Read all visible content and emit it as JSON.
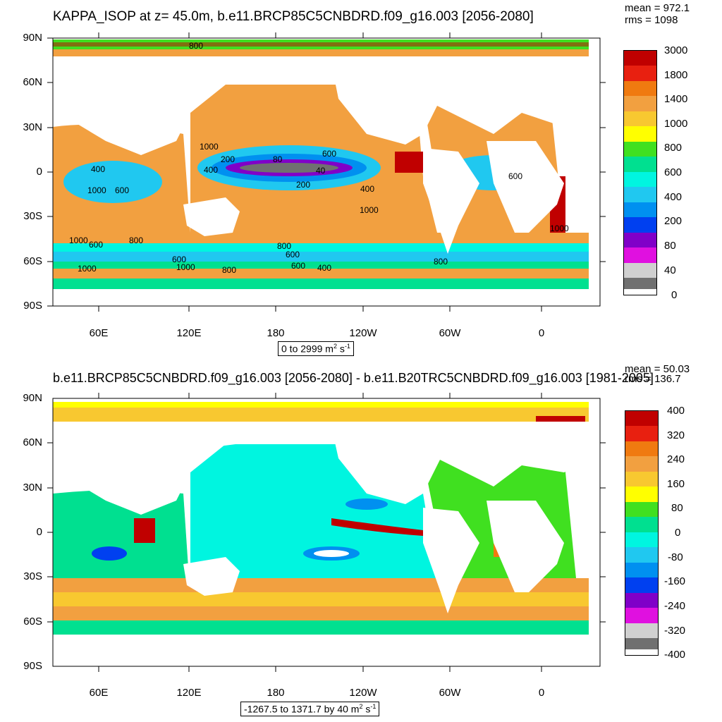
{
  "top": {
    "title": "KAPPA_ISOP at z=  45.0m, b.e11.BRCP85C5CNBDRD.f09_g16.003 [2056-2080]",
    "mean": "mean = 972.1",
    "rms": "rms = 1098",
    "range_label": "0 to 2999",
    "unit": "m",
    "unit_sup1": "2",
    "unit_s": " s",
    "unit_sup2": "-1",
    "colorbar": [
      "3000",
      "1800",
      "1400",
      "1000",
      "800",
      "600",
      "400",
      "200",
      "80",
      "40",
      "0"
    ],
    "colors": [
      "#c00000",
      "#e82010",
      "#f07a10",
      "#f2a040",
      "#f8c830",
      "#ffff00",
      "#40e020",
      "#00e090",
      "#00f5e0",
      "#20c8f0",
      "#0090f0",
      "#0040f0",
      "#8000c8",
      "#e010e0",
      "#d0d0d0",
      "#707070"
    ],
    "contour_labels": [
      "800",
      "1000",
      "200",
      "80",
      "40",
      "600",
      "400",
      "1000",
      "400",
      "600",
      "800",
      "1000",
      "600",
      "800",
      "1000",
      "600",
      "1000",
      "600",
      "800",
      "600",
      "400",
      "800",
      "1000",
      "200",
      "600",
      "400",
      "1000",
      "600",
      "600",
      "800",
      "1000"
    ]
  },
  "bottom": {
    "title": "b.e11.BRCP85C5CNBDRD.f09_g16.003 [2056-2080] - b.e11.B20TRC5CNBDRD.f09_g16.003 [1981-2005]",
    "mean": "mean = 50.03",
    "rms": "rms = 136.7",
    "range_label": "-1267.5 to 1371.7 by 40",
    "unit": "m",
    "unit_sup1": "2",
    "unit_s": " s",
    "unit_sup2": "-1",
    "colorbar": [
      "400",
      "320",
      "240",
      "160",
      "80",
      "0",
      "-80",
      "-160",
      "-240",
      "-320",
      "-400"
    ],
    "colors": [
      "#c00000",
      "#e82010",
      "#f07a10",
      "#f2a040",
      "#f8c830",
      "#ffff00",
      "#40e020",
      "#00e090",
      "#00f5e0",
      "#20c8f0",
      "#0090f0",
      "#0040f0",
      "#8000c8",
      "#e010e0",
      "#d0d0d0",
      "#707070"
    ]
  },
  "axes": {
    "lat_labels": [
      "90N",
      "60N",
      "30N",
      "0",
      "30S",
      "60S",
      "90S"
    ],
    "lon_labels": [
      "60E",
      "120E",
      "180",
      "120W",
      "60W",
      "0"
    ]
  }
}
